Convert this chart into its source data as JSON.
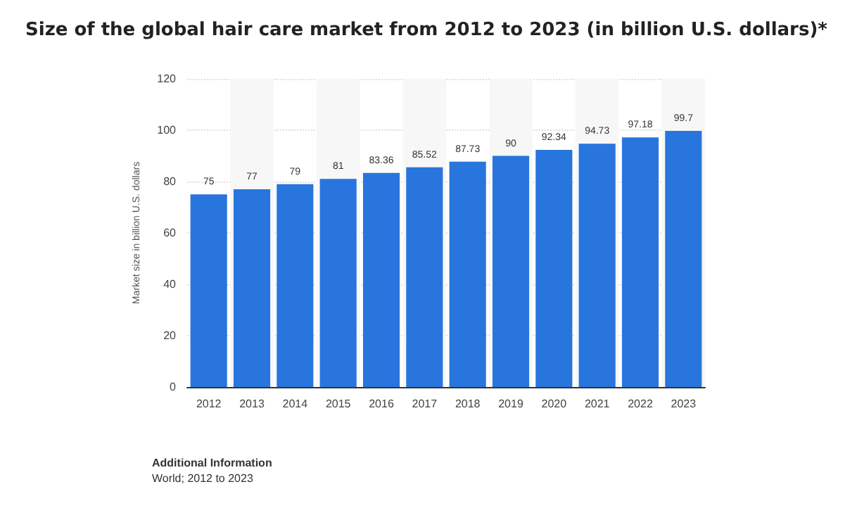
{
  "chart_data": {
    "type": "bar",
    "title": "Size of the global hair care market from 2012 to 2023 (in billion U.S. dollars)*",
    "ylabel": "Market size in billion U.S. dollars",
    "categories": [
      "2012",
      "2013",
      "2014",
      "2015",
      "2016",
      "2017",
      "2018",
      "2019",
      "2020",
      "2021",
      "2022",
      "2023"
    ],
    "values": [
      75,
      77,
      79,
      81,
      83.36,
      85.52,
      87.73,
      90,
      92.34,
      94.73,
      97.18,
      99.7
    ],
    "color": "#2876dd",
    "ylim": [
      0,
      120
    ],
    "yticks": [
      0,
      20,
      40,
      60,
      80,
      100,
      120
    ],
    "grid": "y",
    "data_labels": true,
    "annotations": [
      "Additional Information",
      "World; 2012 to 2023"
    ]
  }
}
